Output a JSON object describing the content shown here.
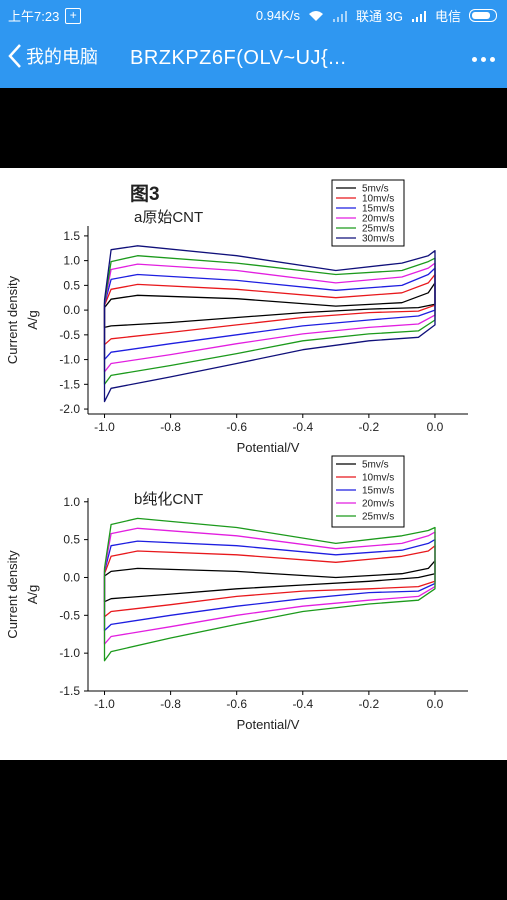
{
  "status": {
    "time": "上午7:23",
    "speed": "0.94K/s",
    "carrier": "联通 3G",
    "carrier2": "电信"
  },
  "titlebar": {
    "back_label": "我的电脑",
    "title": "BRZKPZ6F(OLV~UJ{..."
  },
  "figure": {
    "title": "图3",
    "panel_a": "a原始CNT",
    "panel_b": "b纯化CNT"
  },
  "chart_data": [
    {
      "type": "line",
      "title": "a原始CNT",
      "xlabel": "Potential/V",
      "ylabel": "Current density A/g",
      "xlim": [
        -1.05,
        0.1
      ],
      "ylim": [
        -2.1,
        1.7
      ],
      "xticks": [
        "-1.0",
        "-0.8",
        "-0.6",
        "-0.4",
        "-0.2",
        "0.0"
      ],
      "yticks": [
        "1.5",
        "1.0",
        "0.5",
        "0.0",
        "-0.5",
        "-1.0",
        "-1.5",
        "-2.0"
      ],
      "legend_position": "top-right",
      "series": [
        {
          "name": "5mv/s",
          "color": "#000000",
          "upper": [
            [
              -1.0,
              0.05
            ],
            [
              -0.98,
              0.22
            ],
            [
              -0.9,
              0.3
            ],
            [
              -0.6,
              0.23
            ],
            [
              -0.3,
              0.08
            ],
            [
              -0.1,
              0.15
            ],
            [
              -0.02,
              0.35
            ],
            [
              0.0,
              0.55
            ]
          ],
          "lower": [
            [
              -1.0,
              -0.35
            ],
            [
              -0.98,
              -0.32
            ],
            [
              -0.8,
              -0.25
            ],
            [
              -0.6,
              -0.15
            ],
            [
              -0.4,
              -0.05
            ],
            [
              -0.2,
              0.02
            ],
            [
              -0.05,
              0.05
            ],
            [
              0.0,
              0.12
            ]
          ]
        },
        {
          "name": "10mv/s",
          "color": "#e8181c",
          "upper": [
            [
              -1.0,
              0.1
            ],
            [
              -0.98,
              0.42
            ],
            [
              -0.9,
              0.52
            ],
            [
              -0.6,
              0.42
            ],
            [
              -0.3,
              0.25
            ],
            [
              -0.1,
              0.35
            ],
            [
              -0.02,
              0.55
            ],
            [
              0.0,
              0.72
            ]
          ],
          "lower": [
            [
              -1.0,
              -0.7
            ],
            [
              -0.98,
              -0.58
            ],
            [
              -0.8,
              -0.45
            ],
            [
              -0.6,
              -0.3
            ],
            [
              -0.4,
              -0.15
            ],
            [
              -0.2,
              -0.05
            ],
            [
              -0.05,
              -0.02
            ],
            [
              0.0,
              0.1
            ]
          ]
        },
        {
          "name": "15mv/s",
          "color": "#1e1ee0",
          "upper": [
            [
              -1.0,
              0.12
            ],
            [
              -0.98,
              0.62
            ],
            [
              -0.9,
              0.72
            ],
            [
              -0.6,
              0.6
            ],
            [
              -0.3,
              0.4
            ],
            [
              -0.1,
              0.5
            ],
            [
              -0.02,
              0.72
            ],
            [
              0.0,
              0.85
            ]
          ],
          "lower": [
            [
              -1.0,
              -1.0
            ],
            [
              -0.98,
              -0.85
            ],
            [
              -0.8,
              -0.68
            ],
            [
              -0.6,
              -0.5
            ],
            [
              -0.4,
              -0.32
            ],
            [
              -0.2,
              -0.2
            ],
            [
              -0.05,
              -0.12
            ],
            [
              0.0,
              0.0
            ]
          ]
        },
        {
          "name": "20mv/s",
          "color": "#e21fe0",
          "upper": [
            [
              -1.0,
              0.14
            ],
            [
              -0.98,
              0.82
            ],
            [
              -0.9,
              0.93
            ],
            [
              -0.6,
              0.8
            ],
            [
              -0.3,
              0.55
            ],
            [
              -0.1,
              0.67
            ],
            [
              -0.02,
              0.85
            ],
            [
              0.0,
              0.95
            ]
          ],
          "lower": [
            [
              -1.0,
              -1.25
            ],
            [
              -0.98,
              -1.08
            ],
            [
              -0.8,
              -0.9
            ],
            [
              -0.6,
              -0.68
            ],
            [
              -0.4,
              -0.48
            ],
            [
              -0.2,
              -0.35
            ],
            [
              -0.05,
              -0.28
            ],
            [
              0.0,
              -0.1
            ]
          ]
        },
        {
          "name": "25mv/s",
          "color": "#1c9a1c",
          "upper": [
            [
              -1.0,
              0.15
            ],
            [
              -0.98,
              0.98
            ],
            [
              -0.9,
              1.1
            ],
            [
              -0.6,
              0.95
            ],
            [
              -0.3,
              0.72
            ],
            [
              -0.1,
              0.8
            ],
            [
              -0.02,
              0.98
            ],
            [
              0.0,
              1.05
            ]
          ],
          "lower": [
            [
              -1.0,
              -1.5
            ],
            [
              -0.98,
              -1.32
            ],
            [
              -0.8,
              -1.12
            ],
            [
              -0.6,
              -0.88
            ],
            [
              -0.4,
              -0.62
            ],
            [
              -0.2,
              -0.48
            ],
            [
              -0.05,
              -0.42
            ],
            [
              0.0,
              -0.2
            ]
          ]
        },
        {
          "name": "30mv/s",
          "color": "#10107a",
          "upper": [
            [
              -1.0,
              0.2
            ],
            [
              -0.98,
              1.22
            ],
            [
              -0.9,
              1.3
            ],
            [
              -0.6,
              1.1
            ],
            [
              -0.3,
              0.8
            ],
            [
              -0.1,
              0.95
            ],
            [
              -0.02,
              1.1
            ],
            [
              0.0,
              1.2
            ]
          ],
          "lower": [
            [
              -1.0,
              -1.85
            ],
            [
              -0.98,
              -1.58
            ],
            [
              -0.8,
              -1.35
            ],
            [
              -0.6,
              -1.08
            ],
            [
              -0.4,
              -0.8
            ],
            [
              -0.2,
              -0.62
            ],
            [
              -0.05,
              -0.55
            ],
            [
              0.0,
              -0.3
            ]
          ]
        }
      ]
    },
    {
      "type": "line",
      "title": "b纯化CNT",
      "xlabel": "Potential/V",
      "ylabel": "Current density A/g",
      "xlim": [
        -1.05,
        0.1
      ],
      "ylim": [
        -1.5,
        1.05
      ],
      "xticks": [
        "-1.0",
        "-0.8",
        "-0.6",
        "-0.4",
        "-0.2",
        "0.0"
      ],
      "yticks": [
        "1.0",
        "0.5",
        "0.0",
        "-0.5",
        "-1.0",
        "-1.5"
      ],
      "legend_position": "top-right",
      "series": [
        {
          "name": "5mv/s",
          "color": "#000000",
          "upper": [
            [
              -1.0,
              0.02
            ],
            [
              -0.98,
              0.08
            ],
            [
              -0.9,
              0.12
            ],
            [
              -0.6,
              0.08
            ],
            [
              -0.3,
              0.0
            ],
            [
              -0.1,
              0.05
            ],
            [
              -0.02,
              0.12
            ],
            [
              0.0,
              0.22
            ]
          ],
          "lower": [
            [
              -1.0,
              -0.32
            ],
            [
              -0.98,
              -0.28
            ],
            [
              -0.8,
              -0.22
            ],
            [
              -0.6,
              -0.15
            ],
            [
              -0.4,
              -0.1
            ],
            [
              -0.2,
              -0.05
            ],
            [
              -0.05,
              0.0
            ],
            [
              0.0,
              0.05
            ]
          ]
        },
        {
          "name": "10mv/s",
          "color": "#e8181c",
          "upper": [
            [
              -1.0,
              0.05
            ],
            [
              -0.98,
              0.28
            ],
            [
              -0.9,
              0.35
            ],
            [
              -0.6,
              0.3
            ],
            [
              -0.3,
              0.2
            ],
            [
              -0.1,
              0.28
            ],
            [
              -0.02,
              0.35
            ],
            [
              0.0,
              0.42
            ]
          ],
          "lower": [
            [
              -1.0,
              -0.52
            ],
            [
              -0.98,
              -0.45
            ],
            [
              -0.8,
              -0.36
            ],
            [
              -0.6,
              -0.25
            ],
            [
              -0.4,
              -0.18
            ],
            [
              -0.2,
              -0.15
            ],
            [
              -0.05,
              -0.12
            ],
            [
              0.0,
              -0.05
            ]
          ]
        },
        {
          "name": "15mv/s",
          "color": "#1e1ee0",
          "upper": [
            [
              -1.0,
              0.08
            ],
            [
              -0.98,
              0.42
            ],
            [
              -0.9,
              0.48
            ],
            [
              -0.6,
              0.42
            ],
            [
              -0.3,
              0.3
            ],
            [
              -0.1,
              0.36
            ],
            [
              -0.02,
              0.45
            ],
            [
              0.0,
              0.5
            ]
          ],
          "lower": [
            [
              -1.0,
              -0.7
            ],
            [
              -0.98,
              -0.62
            ],
            [
              -0.8,
              -0.5
            ],
            [
              -0.6,
              -0.38
            ],
            [
              -0.4,
              -0.28
            ],
            [
              -0.2,
              -0.2
            ],
            [
              -0.05,
              -0.18
            ],
            [
              0.0,
              -0.08
            ]
          ]
        },
        {
          "name": "20mv/s",
          "color": "#e21fe0",
          "upper": [
            [
              -1.0,
              0.1
            ],
            [
              -0.98,
              0.58
            ],
            [
              -0.9,
              0.65
            ],
            [
              -0.6,
              0.55
            ],
            [
              -0.3,
              0.38
            ],
            [
              -0.1,
              0.45
            ],
            [
              -0.02,
              0.55
            ],
            [
              0.0,
              0.6
            ]
          ],
          "lower": [
            [
              -1.0,
              -0.88
            ],
            [
              -0.98,
              -0.78
            ],
            [
              -0.8,
              -0.65
            ],
            [
              -0.6,
              -0.5
            ],
            [
              -0.4,
              -0.38
            ],
            [
              -0.2,
              -0.3
            ],
            [
              -0.05,
              -0.25
            ],
            [
              0.0,
              -0.12
            ]
          ]
        },
        {
          "name": "25mv/s",
          "color": "#1c9a1c",
          "upper": [
            [
              -1.0,
              0.12
            ],
            [
              -0.98,
              0.7
            ],
            [
              -0.9,
              0.78
            ],
            [
              -0.6,
              0.66
            ],
            [
              -0.3,
              0.45
            ],
            [
              -0.1,
              0.55
            ],
            [
              -0.02,
              0.62
            ],
            [
              0.0,
              0.66
            ]
          ],
          "lower": [
            [
              -1.0,
              -1.1
            ],
            [
              -0.98,
              -0.98
            ],
            [
              -0.8,
              -0.8
            ],
            [
              -0.6,
              -0.62
            ],
            [
              -0.4,
              -0.45
            ],
            [
              -0.2,
              -0.35
            ],
            [
              -0.05,
              -0.3
            ],
            [
              0.0,
              -0.15
            ]
          ]
        }
      ]
    }
  ]
}
